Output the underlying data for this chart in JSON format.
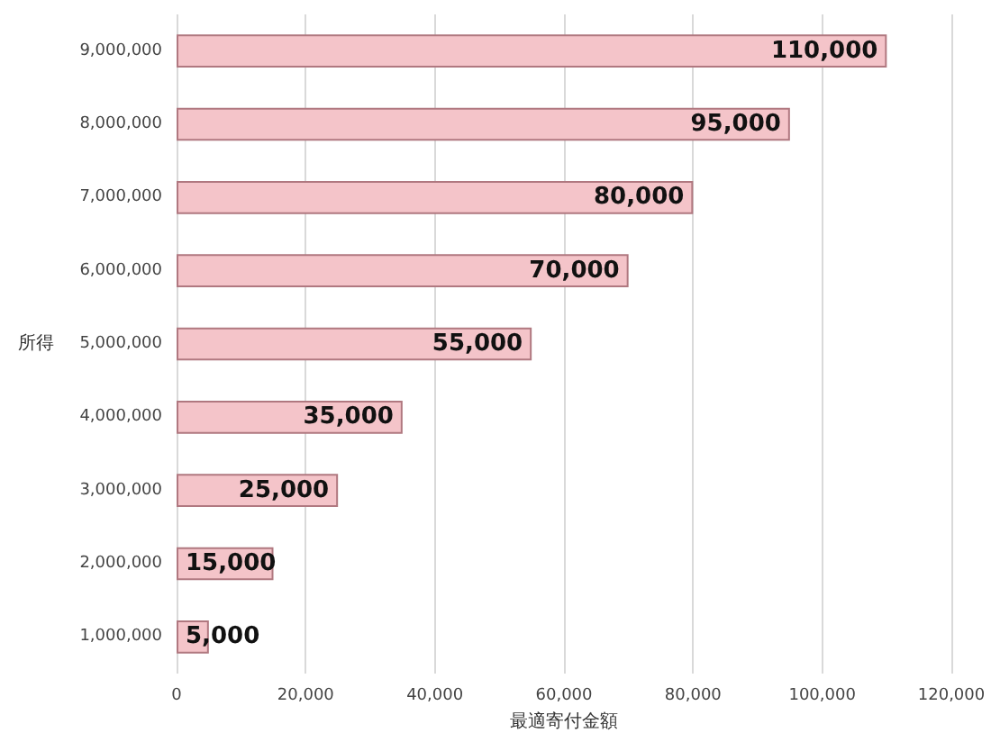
{
  "chart_data": {
    "type": "bar",
    "orientation": "horizontal",
    "xlabel": "最適寄付金額",
    "ylabel": "所得",
    "categories": [
      "9,000,000",
      "8,000,000",
      "7,000,000",
      "6,000,000",
      "5,000,000",
      "4,000,000",
      "3,000,000",
      "2,000,000",
      "1,000,000"
    ],
    "values": [
      110000,
      95000,
      80000,
      70000,
      55000,
      35000,
      25000,
      15000,
      5000
    ],
    "value_labels": [
      "110,000",
      "95,000",
      "80,000",
      "70,000",
      "55,000",
      "35,000",
      "25,000",
      "15,000",
      "5,000"
    ],
    "color": "#f4c4c9",
    "xlim": [
      0,
      120000
    ],
    "xticks": [
      0,
      {
        "value": 20000,
        "label": "20,000"
      },
      {
        "value": 40000,
        "label": "40,000"
      },
      {
        "value": 60000,
        "label": "60,000"
      },
      {
        "value": 80000,
        "label": "80,000"
      },
      {
        "value": 100000,
        "label": "100,000"
      },
      {
        "value": 120000,
        "label": "120,000"
      }
    ],
    "grid": "x"
  }
}
